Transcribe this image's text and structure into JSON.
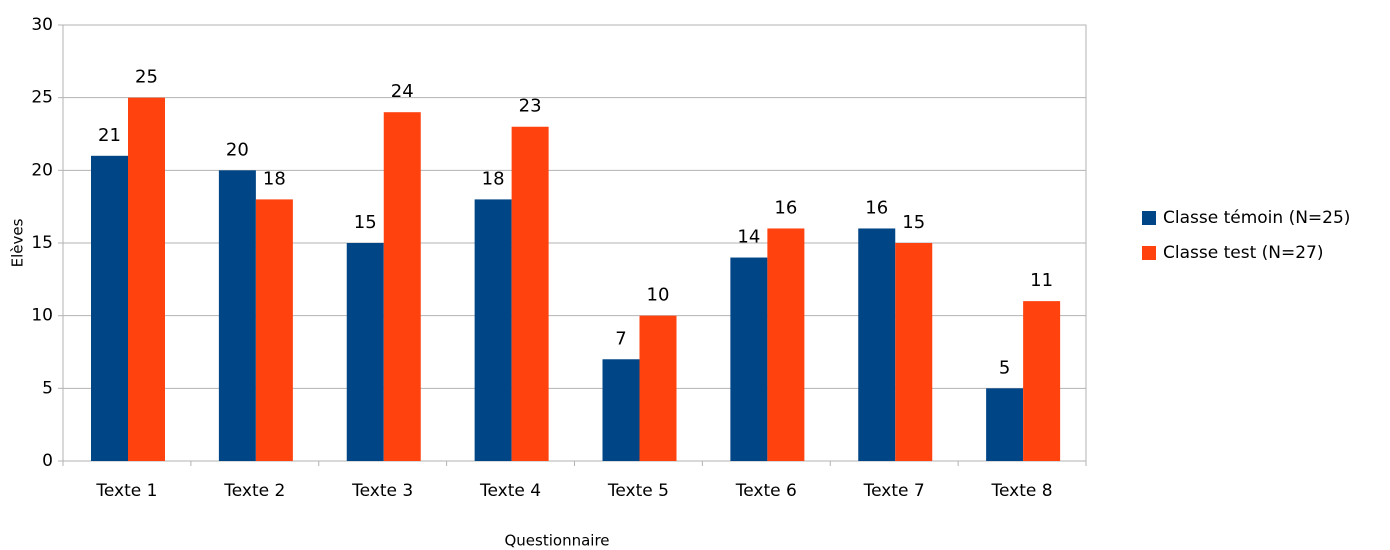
{
  "chart_data": {
    "type": "bar",
    "x_label": "Questionnaire",
    "y_label": "Elèves",
    "categories": [
      "Texte 1",
      "Texte 2",
      "Texte 3",
      "Texte 4",
      "Texte 5",
      "Texte 6",
      "Texte 7",
      "Texte 8"
    ],
    "series": [
      {
        "name": "Classe témoin (N=25)",
        "color": "#004586",
        "values": [
          21,
          20,
          15,
          18,
          7,
          14,
          16,
          5
        ]
      },
      {
        "name": "Classe test (N=27)",
        "color": "#ff420e",
        "values": [
          25,
          18,
          24,
          23,
          10,
          16,
          15,
          11
        ]
      }
    ],
    "ylim": [
      0,
      30
    ],
    "yticks": [
      0,
      5,
      10,
      15,
      20,
      25,
      30
    ],
    "grid": true,
    "legend": "right"
  }
}
